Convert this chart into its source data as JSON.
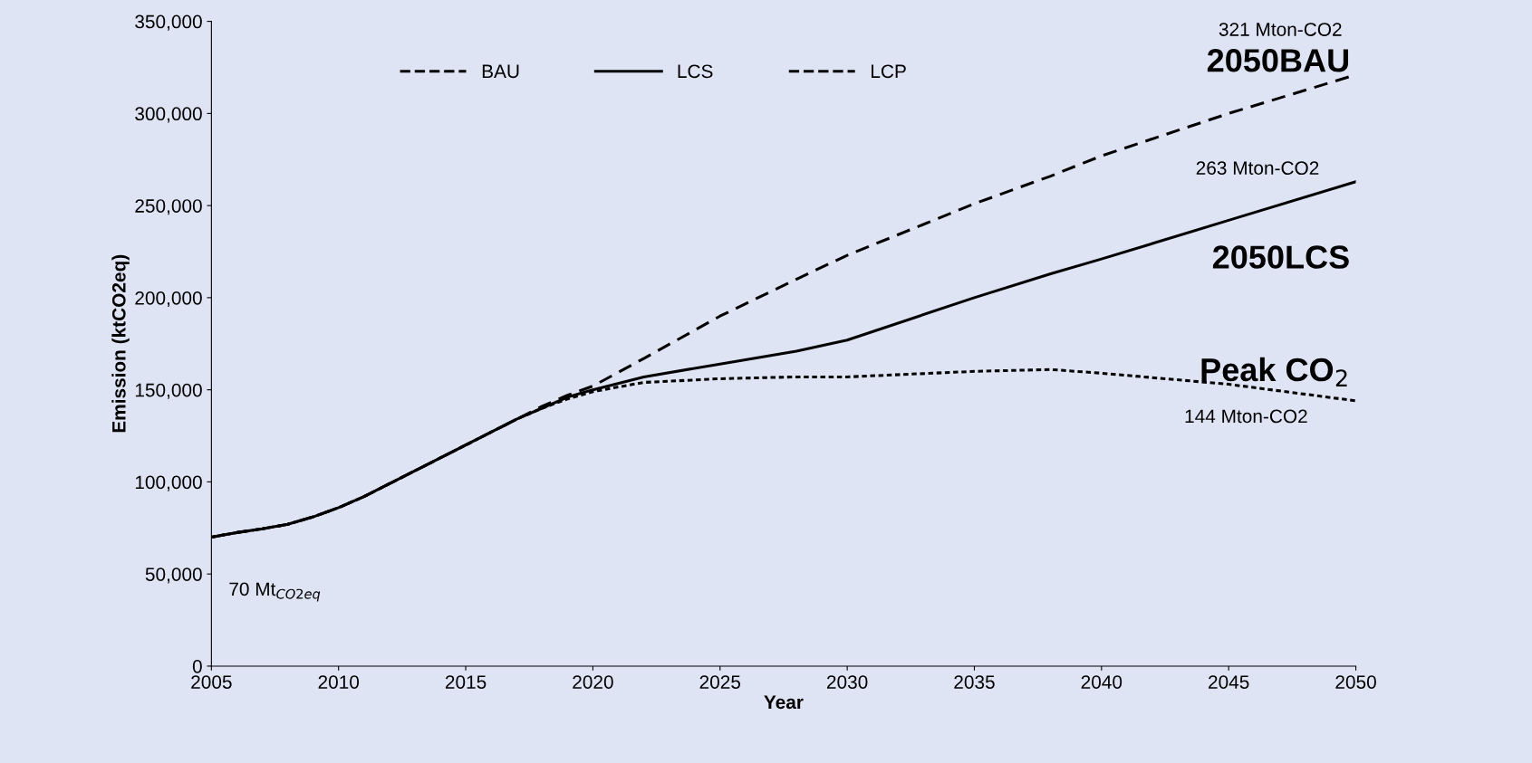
{
  "chart_data": {
    "type": "line",
    "xlabel": "Year",
    "ylabel": "Emission (ktCO2eq)",
    "x": [
      2005,
      2006,
      2007,
      2008,
      2009,
      2010,
      2011,
      2012,
      2013,
      2014,
      2015,
      2016,
      2017,
      2018,
      2019,
      2020,
      2022,
      2025,
      2028,
      2030,
      2035,
      2038,
      2040,
      2045,
      2050
    ],
    "series": [
      {
        "name": "BAU",
        "color": "#000000",
        "line_style": "dashed",
        "values": [
          70000,
          72500,
          74500,
          77000,
          81000,
          86000,
          92000,
          99000,
          106000,
          113000,
          120000,
          127000,
          134000,
          141000,
          147000,
          152000,
          167000,
          190000,
          210000,
          223000,
          251000,
          266000,
          277000,
          300000,
          321000
        ]
      },
      {
        "name": "LCS",
        "color": "#000000",
        "line_style": "solid",
        "values": [
          70000,
          72500,
          74500,
          77000,
          81000,
          86000,
          92000,
          99000,
          106000,
          113000,
          120000,
          127000,
          134000,
          140000,
          146000,
          150000,
          157000,
          164000,
          171000,
          177000,
          200000,
          213000,
          221000,
          242000,
          263000
        ]
      },
      {
        "name": "LCP",
        "color": "#000000",
        "line_style": "dotted",
        "values": [
          70000,
          72500,
          74500,
          77000,
          81000,
          86000,
          92000,
          99000,
          106000,
          113000,
          120000,
          127000,
          134000,
          140000,
          145000,
          149000,
          154000,
          156000,
          157000,
          157000,
          160000,
          161000,
          159000,
          153000,
          144000
        ]
      }
    ],
    "xlim": [
      2005,
      2050
    ],
    "xticks": [
      2005,
      2010,
      2015,
      2020,
      2025,
      2030,
      2035,
      2040,
      2045,
      2050
    ],
    "ylim": [
      0,
      350000
    ],
    "yticks": [
      {
        "value": 0,
        "label": "0"
      },
      {
        "value": 50000,
        "label": "50,000"
      },
      {
        "value": 100000,
        "label": "100,000"
      },
      {
        "value": 150000,
        "label": "150,000"
      },
      {
        "value": 200000,
        "label": "200,000"
      },
      {
        "value": 250000,
        "label": "250,000"
      },
      {
        "value": 300000,
        "label": "300,000"
      },
      {
        "value": 350000,
        "label": "350,000"
      }
    ],
    "annotations": [
      "321 Mton-CO2",
      "2050BAU",
      "263 Mton-CO2",
      "2050LCS",
      "Peak CO$_{2}$",
      "144 Mton-CO2",
      "70 Mt$_{CO2eq}$"
    ],
    "legend": "top left",
    "grid": false,
    "marker": "none"
  }
}
